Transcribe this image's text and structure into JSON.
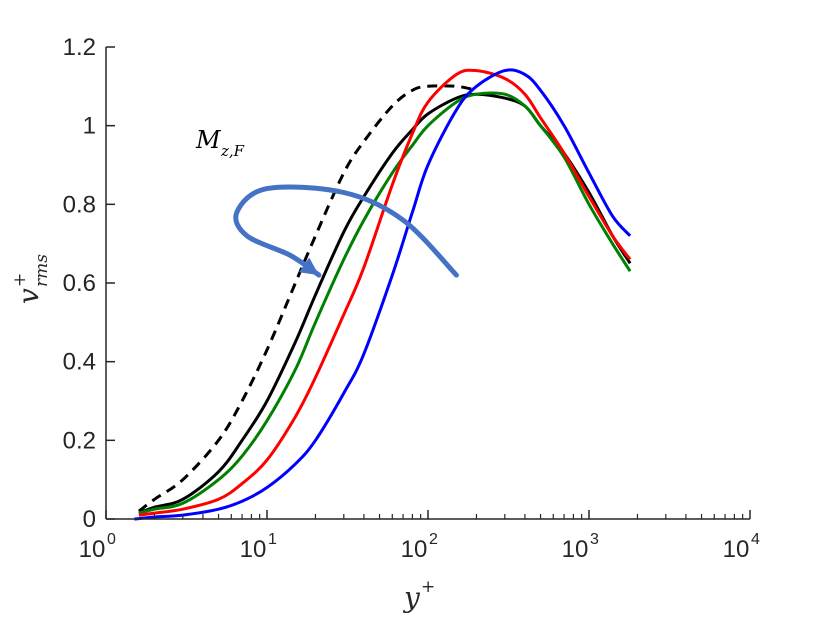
{
  "chart_data": {
    "type": "line",
    "title": "",
    "xscale": "log",
    "xlim": [
      1,
      10000
    ],
    "ylim": [
      0,
      1.2
    ],
    "xlabel": {
      "base": "y",
      "sup": "+"
    },
    "ylabel": {
      "base": "v",
      "sup": "+",
      "sub": "rms"
    },
    "x_ticks": [
      {
        "value": 1,
        "base": "10",
        "exp": "0"
      },
      {
        "value": 10,
        "base": "10",
        "exp": "1"
      },
      {
        "value": 100,
        "base": "10",
        "exp": "2"
      },
      {
        "value": 1000,
        "base": "10",
        "exp": "3"
      },
      {
        "value": 10000,
        "base": "10",
        "exp": "4"
      }
    ],
    "y_ticks": [
      {
        "value": 0,
        "label": "0"
      },
      {
        "value": 0.2,
        "label": "0.2"
      },
      {
        "value": 0.4,
        "label": "0.4"
      },
      {
        "value": 0.6,
        "label": "0.6"
      },
      {
        "value": 0.8,
        "label": "0.8"
      },
      {
        "value": 1.0,
        "label": "1"
      },
      {
        "value": 1.2,
        "label": "1.2"
      }
    ],
    "grid": false,
    "annotation": {
      "base": "M",
      "sub": "z,F",
      "arrow_color": "#4472c4",
      "arrow_points": [
        [
          150,
          0.62
        ],
        [
          70,
          0.76
        ],
        [
          30,
          0.83
        ],
        [
          10,
          0.84
        ],
        [
          6.5,
          0.78
        ],
        [
          7.5,
          0.72
        ],
        [
          14,
          0.67
        ],
        [
          21,
          0.62
        ]
      ],
      "label_anchor": [
        6.5,
        0.96
      ]
    },
    "series": [
      {
        "name": "dashed-black",
        "color": "#000000",
        "dash": "10,7",
        "x": [
          1.6,
          2,
          3,
          5,
          7,
          10,
          15,
          20,
          30,
          40,
          60,
          80,
          100,
          150,
          200
        ],
        "y": [
          0.02,
          0.05,
          0.1,
          0.2,
          0.3,
          0.43,
          0.6,
          0.72,
          0.88,
          0.96,
          1.05,
          1.09,
          1.1,
          1.1,
          1.09
        ]
      },
      {
        "name": "black",
        "color": "#000000",
        "dash": "",
        "x": [
          1.6,
          2,
          3,
          5,
          7,
          10,
          15,
          20,
          30,
          40,
          60,
          80,
          100,
          150,
          200,
          300,
          400,
          500,
          700,
          1000,
          1400,
          1800
        ],
        "y": [
          0.015,
          0.03,
          0.05,
          0.12,
          0.2,
          0.3,
          0.45,
          0.57,
          0.73,
          0.82,
          0.93,
          0.99,
          1.03,
          1.07,
          1.08,
          1.07,
          1.05,
          1.0,
          0.93,
          0.83,
          0.72,
          0.65
        ]
      },
      {
        "name": "green",
        "color": "#008000",
        "dash": "",
        "x": [
          1.6,
          2,
          3,
          5,
          7,
          10,
          15,
          20,
          30,
          40,
          60,
          80,
          100,
          150,
          200,
          300,
          400,
          500,
          700,
          1000,
          1400,
          1800
        ],
        "y": [
          0.015,
          0.025,
          0.04,
          0.1,
          0.16,
          0.25,
          0.38,
          0.5,
          0.66,
          0.76,
          0.88,
          0.95,
          1.0,
          1.06,
          1.08,
          1.08,
          1.05,
          1.0,
          0.92,
          0.8,
          0.7,
          0.63
        ]
      },
      {
        "name": "red",
        "color": "#ff0000",
        "dash": "",
        "x": [
          1.6,
          2,
          3,
          5,
          7,
          10,
          15,
          20,
          30,
          40,
          60,
          80,
          100,
          150,
          200,
          300,
          400,
          500,
          700,
          1000,
          1400,
          1800
        ],
        "y": [
          0.01,
          0.015,
          0.025,
          0.05,
          0.09,
          0.15,
          0.26,
          0.36,
          0.52,
          0.64,
          0.85,
          0.98,
          1.06,
          1.13,
          1.14,
          1.12,
          1.08,
          1.02,
          0.93,
          0.82,
          0.72,
          0.66
        ]
      },
      {
        "name": "blue",
        "color": "#0000ff",
        "dash": "",
        "x": [
          1.5,
          2,
          3,
          5,
          7,
          10,
          15,
          20,
          30,
          40,
          60,
          80,
          100,
          150,
          200,
          300,
          400,
          500,
          700,
          1000,
          1400,
          1800
        ],
        "y": [
          0.0,
          0.005,
          0.01,
          0.025,
          0.045,
          0.08,
          0.14,
          0.2,
          0.32,
          0.42,
          0.62,
          0.78,
          0.9,
          1.04,
          1.1,
          1.14,
          1.13,
          1.09,
          1.0,
          0.88,
          0.77,
          0.72
        ]
      }
    ]
  }
}
